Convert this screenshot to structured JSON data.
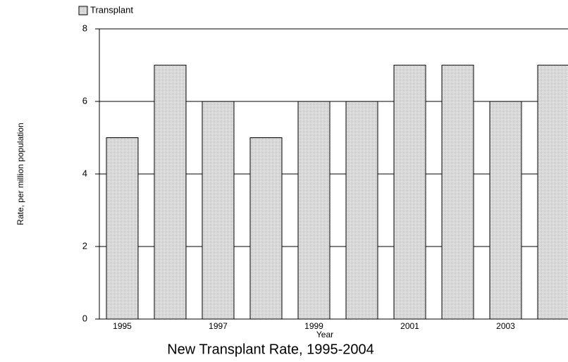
{
  "chart_data": {
    "type": "bar",
    "title": "New Transplant Rate, 1995-2004",
    "x_label": "Year",
    "y_label": "Rate, per million population",
    "categories": [
      "1995",
      null,
      "1997",
      null,
      "1999",
      null,
      "2001",
      null,
      "2003",
      null
    ],
    "series": [
      {
        "name": "Transplant",
        "color": "#dcdcdc",
        "values": [
          5,
          7,
          6,
          5,
          6,
          6,
          7,
          7,
          6,
          7
        ]
      }
    ],
    "ylim": [
      0,
      8
    ],
    "yticks": [
      0,
      2,
      4,
      6,
      8
    ],
    "grid": true,
    "legend": "top-left"
  }
}
